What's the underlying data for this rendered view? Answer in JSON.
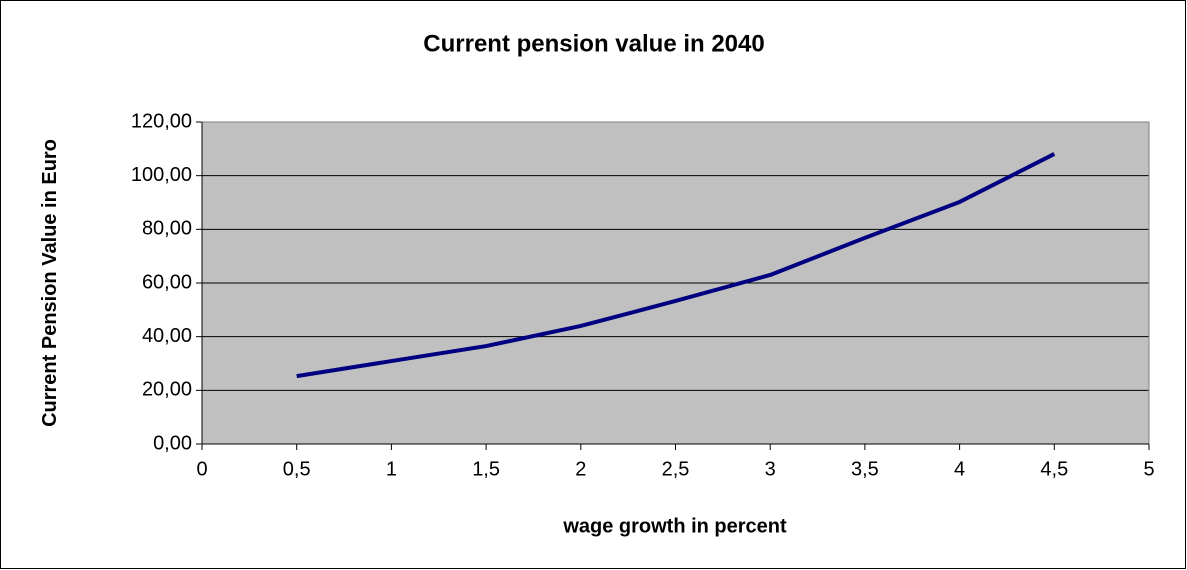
{
  "chart_data": {
    "type": "line",
    "title": "Current pension value in 2040",
    "xlabel": "wage growth in percent",
    "ylabel": "Current Pension Value in Euro",
    "x": [
      0.5,
      1,
      1.5,
      2,
      2.5,
      3,
      3.5,
      4,
      4.5
    ],
    "series": [
      {
        "color": "#000080",
        "values": [
          25.3,
          30.9,
          36.5,
          44.0,
          53.3,
          63.0,
          76.8,
          90.2,
          108.1
        ]
      }
    ],
    "xlim": [
      0,
      5
    ],
    "xticks": [
      0,
      {
        "value": 0.5,
        "label": "0,5"
      },
      1,
      {
        "value": 1.5,
        "label": "1,5"
      },
      2,
      {
        "value": 2.5,
        "label": "2,5"
      },
      3,
      {
        "value": 3.5,
        "label": "3,5"
      },
      4,
      {
        "value": 4.5,
        "label": "4,5"
      },
      5
    ],
    "ylim": [
      0,
      120
    ],
    "yticks": [
      {
        "value": 0,
        "label": "0,00"
      },
      {
        "value": 20,
        "label": "20,00"
      },
      {
        "value": 40,
        "label": "40,00"
      },
      {
        "value": 60,
        "label": "60,00"
      },
      {
        "value": 80,
        "label": "80,00"
      },
      {
        "value": 100,
        "label": "100,00"
      },
      {
        "value": 120,
        "label": "120,00"
      }
    ],
    "grid": true
  }
}
